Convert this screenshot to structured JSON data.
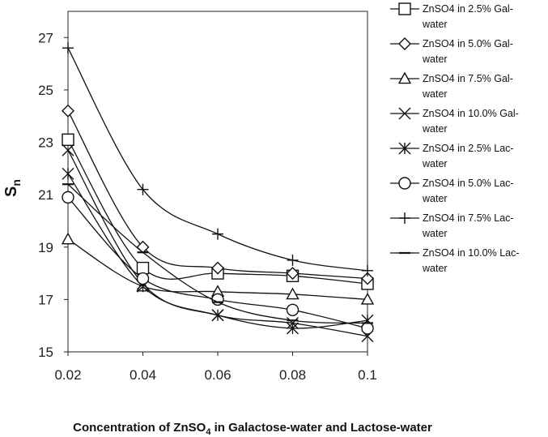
{
  "chart_data": {
    "type": "line",
    "xlabel_parts": {
      "pre": "Concentration of ZnSO",
      "sub": "4",
      "post": " in Galactose-water and Lactose-water"
    },
    "ylabel_parts": {
      "main": "S",
      "sub": "n"
    },
    "x": [
      0.02,
      0.04,
      0.06,
      0.08,
      0.1
    ],
    "x_tick_labels": [
      "0.02",
      "0.04",
      "0.06",
      "0.08",
      "0.1"
    ],
    "y_tick_values": [
      15,
      17,
      19,
      21,
      23,
      25,
      27
    ],
    "y_tick_labels": [
      "15",
      "17",
      "19",
      "21",
      "23",
      "25",
      "27"
    ],
    "xlim": [
      0.02,
      0.1
    ],
    "ylim": [
      15,
      28
    ],
    "grid": false,
    "legend_position": "right",
    "series": [
      {
        "name": "ZnSO4 in 2.5% Gal-water",
        "marker": "square",
        "values": [
          23.1,
          18.2,
          18.0,
          17.9,
          17.6
        ]
      },
      {
        "name": "ZnSO4 in 5.0% Gal-water",
        "marker": "diamond",
        "values": [
          24.2,
          19.0,
          18.2,
          18.0,
          17.8
        ]
      },
      {
        "name": "ZnSO4 in 7.5% Gal-water",
        "marker": "triangle",
        "values": [
          19.3,
          17.5,
          17.3,
          17.2,
          17.0
        ]
      },
      {
        "name": "ZnSO4 in 10.0% Gal-water",
        "marker": "x",
        "values": [
          22.7,
          17.6,
          16.4,
          16.1,
          15.6
        ]
      },
      {
        "name": "ZnSO4 in 2.5% Lac-water",
        "marker": "asterisk",
        "values": [
          21.8,
          17.5,
          16.4,
          15.9,
          16.2
        ]
      },
      {
        "name": "ZnSO4 in 5.0% Lac-water",
        "marker": "circle",
        "values": [
          20.9,
          17.8,
          17.0,
          16.6,
          15.9
        ]
      },
      {
        "name": "ZnSO4 in 7.5% Lac-water",
        "marker": "plus",
        "values": [
          26.6,
          21.2,
          19.5,
          18.5,
          18.1
        ]
      },
      {
        "name": "ZnSO4 in 10.0% Lac-water",
        "marker": "dash",
        "values": [
          21.4,
          18.8,
          16.9,
          16.2,
          16.1
        ]
      }
    ]
  }
}
